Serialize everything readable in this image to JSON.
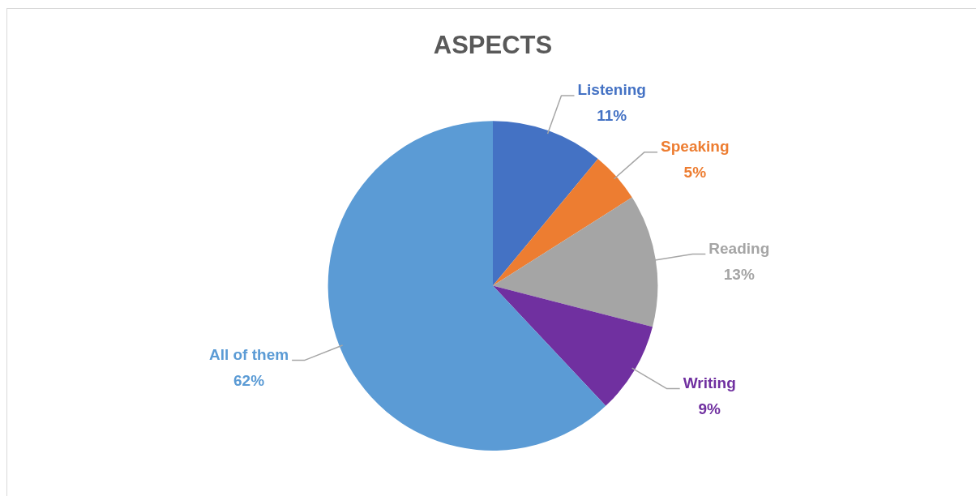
{
  "chart_data": {
    "type": "pie",
    "title": "ASPECTS",
    "categories": [
      "Listening",
      "Speaking",
      "Reading",
      "Writing",
      "All of them"
    ],
    "values": [
      11,
      5,
      13,
      9,
      62
    ],
    "colors": [
      "#4472c4",
      "#ed7d31",
      "#a5a5a5",
      "#7030a0",
      "#5b9bd5"
    ],
    "value_labels": [
      "11%",
      "5%",
      "13%",
      "9%",
      "62%"
    ]
  }
}
